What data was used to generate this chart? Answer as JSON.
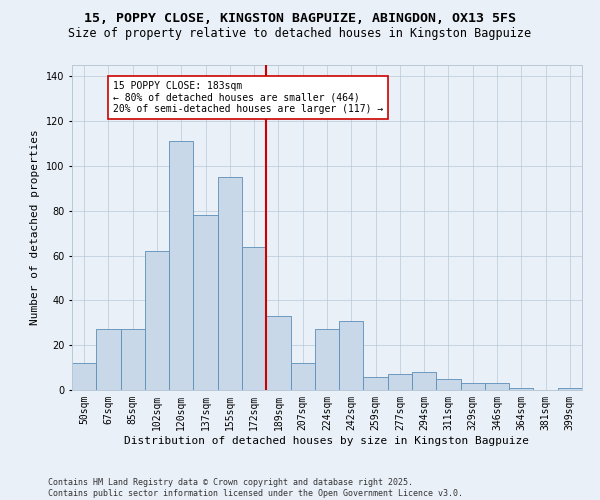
{
  "title_line1": "15, POPPY CLOSE, KINGSTON BAGPUIZE, ABINGDON, OX13 5FS",
  "title_line2": "Size of property relative to detached houses in Kingston Bagpuize",
  "xlabel": "Distribution of detached houses by size in Kingston Bagpuize",
  "ylabel": "Number of detached properties",
  "categories": [
    "50sqm",
    "67sqm",
    "85sqm",
    "102sqm",
    "120sqm",
    "137sqm",
    "155sqm",
    "172sqm",
    "189sqm",
    "207sqm",
    "224sqm",
    "242sqm",
    "259sqm",
    "277sqm",
    "294sqm",
    "311sqm",
    "329sqm",
    "346sqm",
    "364sqm",
    "381sqm",
    "399sqm"
  ],
  "values": [
    12,
    27,
    27,
    62,
    111,
    78,
    95,
    64,
    33,
    12,
    27,
    31,
    6,
    7,
    8,
    5,
    3,
    3,
    1,
    0,
    1
  ],
  "bar_color": "#c8d8e8",
  "bar_edge_color": "#5b8db8",
  "vline_x_idx": 8,
  "vline_color": "#cc0000",
  "annotation_text": "15 POPPY CLOSE: 183sqm\n← 80% of detached houses are smaller (464)\n20% of semi-detached houses are larger (117) →",
  "annotation_box_color": "#ffffff",
  "annotation_box_edge_color": "#cc0000",
  "ylim": [
    0,
    145
  ],
  "yticks": [
    0,
    20,
    40,
    60,
    80,
    100,
    120,
    140
  ],
  "background_color": "#eaf0f8",
  "grid_color": "#b8c8d8",
  "footer_text": "Contains HM Land Registry data © Crown copyright and database right 2025.\nContains public sector information licensed under the Open Government Licence v3.0.",
  "title_fontsize": 9.5,
  "subtitle_fontsize": 8.5,
  "axis_label_fontsize": 8,
  "tick_fontsize": 7,
  "annotation_fontsize": 7,
  "footer_fontsize": 6
}
